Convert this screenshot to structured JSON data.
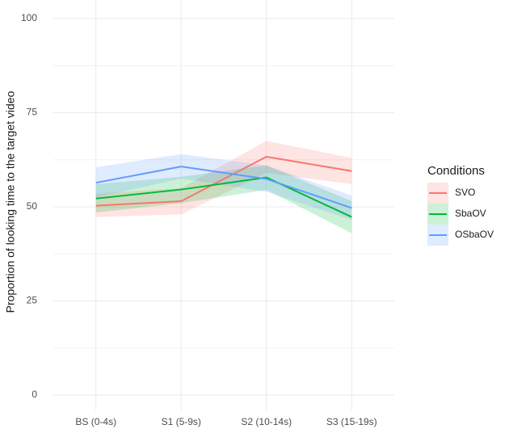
{
  "chart_data": {
    "type": "line",
    "categories": [
      "BS (0-4s)",
      "S1 (5-9s)",
      "S2 (10-14s)",
      "S3 (15-19s)"
    ],
    "ylabel": "Proportion of looking time to the target video",
    "xlabel": "",
    "ylim": [
      0,
      100
    ],
    "yticks": [
      0,
      25,
      50,
      75,
      100
    ],
    "ytick_labels": [
      "0",
      "25",
      "50",
      "75",
      "100"
    ],
    "grid": true,
    "legend": {
      "title": "Conditions",
      "placement": "right"
    },
    "series": [
      {
        "name": "SVO",
        "color": "#F8766D",
        "values": [
          50.3,
          51.5,
          63.3,
          59.5
        ],
        "lower": [
          47.3,
          48.0,
          59.0,
          56.0
        ],
        "upper": [
          53.5,
          55.0,
          67.5,
          63.0
        ]
      },
      {
        "name": "SbaOV",
        "color": "#00BA38",
        "values": [
          52.2,
          54.6,
          57.8,
          47.3
        ],
        "lower": [
          48.5,
          51.0,
          54.5,
          43.0
        ],
        "upper": [
          56.0,
          58.0,
          61.0,
          51.5
        ]
      },
      {
        "name": "OSbaOV",
        "color": "#619CFF",
        "values": [
          56.4,
          60.7,
          57.4,
          49.7
        ],
        "lower": [
          52.5,
          57.5,
          54.0,
          46.5
        ],
        "upper": [
          60.5,
          64.0,
          61.0,
          53.0
        ]
      }
    ]
  }
}
